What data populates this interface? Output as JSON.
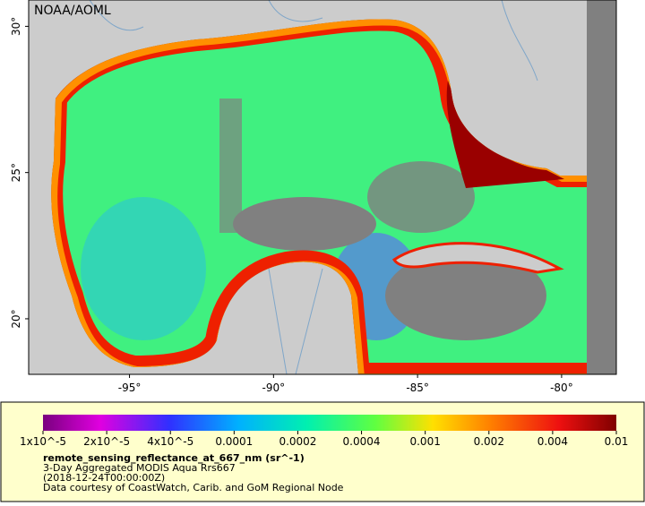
{
  "map": {
    "credit": "NOAA/AOML",
    "lonlim": [
      -98.5,
      -78.1
    ],
    "latlim": [
      18.1,
      30.9
    ],
    "lat_ticks": [
      {
        "value": 30,
        "label": "30°"
      },
      {
        "value": 25,
        "label": "25°"
      },
      {
        "value": 20,
        "label": "20°"
      }
    ],
    "lon_ticks": [
      {
        "value": -95,
        "label": "-95°"
      },
      {
        "value": -90,
        "label": "-90°"
      },
      {
        "value": -85,
        "label": "-85°"
      },
      {
        "value": -80,
        "label": "-80°"
      }
    ]
  },
  "colorbar": {
    "ticks": [
      {
        "value": 1e-05,
        "label": "1x10^-5"
      },
      {
        "value": 2e-05,
        "label": "2x10^-5"
      },
      {
        "value": 4e-05,
        "label": "4x10^-5"
      },
      {
        "value": 0.0001,
        "label": "0.0001"
      },
      {
        "value": 0.0002,
        "label": "0.0002"
      },
      {
        "value": 0.0004,
        "label": "0.0004"
      },
      {
        "value": 0.001,
        "label": "0.001"
      },
      {
        "value": 0.002,
        "label": "0.002"
      },
      {
        "value": 0.004,
        "label": "0.004"
      },
      {
        "value": 0.01,
        "label": "0.01"
      }
    ]
  },
  "caption": {
    "variable": "remote_sensing_reflectance_at_667_nm (sr^-1)",
    "lines": [
      "3-Day Aggregated MODIS Aqua Rrs667",
      "(2018-12-24T00:00:00Z)",
      "Data courtesy of CoastWatch, Carib. and GoM Regional Node"
    ]
  }
}
